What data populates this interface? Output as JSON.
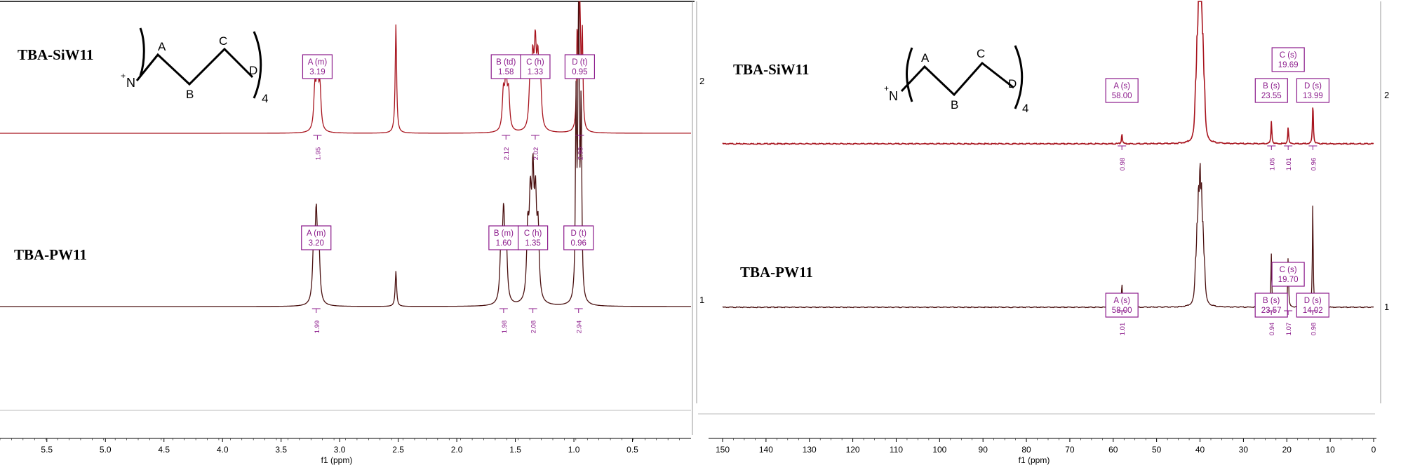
{
  "colors": {
    "trace_top": "#a8141e",
    "trace_bottom": "#4a1010",
    "annotation": "#8b1a8b",
    "axis": "#000000",
    "divider": "#cfcfcf"
  },
  "panels": [
    {
      "id": "h1",
      "axis_label": "f1 (ppm)",
      "right_ticks": [
        "2",
        "1"
      ],
      "xticks": [
        "5.5",
        "5.0",
        "4.5",
        "4.0",
        "3.5",
        "3.0",
        "2.5",
        "2.0",
        "1.5",
        "1.0",
        "0.5"
      ],
      "structure": {
        "cation": "N",
        "charge": "+",
        "labels": [
          "A",
          "B",
          "C",
          "D"
        ],
        "subscript": "4"
      }
    },
    {
      "id": "c13",
      "axis_label": "f1 (ppm)",
      "right_ticks": [
        "2",
        "1"
      ],
      "xticks": [
        "150",
        "140",
        "130",
        "120",
        "110",
        "100",
        "90",
        "80",
        "70",
        "60",
        "50",
        "40",
        "30",
        "20",
        "10",
        "0"
      ],
      "structure": {
        "cation": "N",
        "charge": "+",
        "labels": [
          "A",
          "B",
          "C",
          "D"
        ],
        "subscript": "4"
      }
    }
  ],
  "chart_data": [
    {
      "type": "line",
      "title": "",
      "xlabel": "f1 (ppm)",
      "xlim": [
        5.9,
        0.0
      ],
      "x_reversed": true,
      "series": [
        {
          "name": "TBA-SiW11",
          "peaks": [
            {
              "ppm": 3.19,
              "height": 0.55,
              "mult": "m"
            },
            {
              "ppm": 2.52,
              "height": 1.0,
              "mult": "s"
            },
            {
              "ppm": 1.58,
              "height": 0.5,
              "mult": "td"
            },
            {
              "ppm": 1.33,
              "height": 0.7,
              "mult": "h"
            },
            {
              "ppm": 0.95,
              "height": 1.6,
              "mult": "t"
            }
          ],
          "annotations": [
            {
              "label": "A (m)",
              "value": "3.19",
              "ppm": 3.19
            },
            {
              "label": "B (td)",
              "value": "1.58",
              "ppm": 1.58
            },
            {
              "label": "C (h)",
              "value": "1.33",
              "ppm": 1.33
            },
            {
              "label": "D (t)",
              "value": "0.95",
              "ppm": 0.95
            }
          ],
          "integrals": [
            {
              "value": "1.95",
              "ppm": 3.19
            },
            {
              "value": "2.12",
              "ppm": 1.58
            },
            {
              "value": "2.02",
              "ppm": 1.33
            },
            {
              "value": "2.90",
              "ppm": 0.95
            }
          ]
        },
        {
          "name": "TBA-PW11",
          "peaks": [
            {
              "ppm": 3.2,
              "height": 0.28,
              "mult": "m"
            },
            {
              "ppm": 2.52,
              "height": 0.12,
              "mult": "s"
            },
            {
              "ppm": 1.6,
              "height": 0.28,
              "mult": "m"
            },
            {
              "ppm": 1.35,
              "height": 0.38,
              "mult": "h"
            },
            {
              "ppm": 0.96,
              "height": 1.2,
              "mult": "t"
            }
          ],
          "annotations": [
            {
              "label": "A (m)",
              "value": "3.20",
              "ppm": 3.2
            },
            {
              "label": "B (m)",
              "value": "1.60",
              "ppm": 1.6
            },
            {
              "label": "C (h)",
              "value": "1.35",
              "ppm": 1.35
            },
            {
              "label": "D (t)",
              "value": "0.96",
              "ppm": 0.96
            }
          ],
          "integrals": [
            {
              "value": "1.99",
              "ppm": 3.2
            },
            {
              "value": "1.98",
              "ppm": 1.6
            },
            {
              "value": "2.08",
              "ppm": 1.35
            },
            {
              "value": "2.94",
              "ppm": 0.96
            }
          ]
        }
      ]
    },
    {
      "type": "line",
      "title": "",
      "xlabel": "f1 (ppm)",
      "xlim": [
        150,
        0
      ],
      "x_reversed": true,
      "series": [
        {
          "name": "TBA-SiW11",
          "peaks": [
            {
              "ppm": 58.0,
              "height": 0.08,
              "mult": "s"
            },
            {
              "ppm": 40.0,
              "height": 1.0,
              "mult": "solvent"
            },
            {
              "ppm": 23.55,
              "height": 0.18,
              "mult": "s"
            },
            {
              "ppm": 19.69,
              "height": 0.13,
              "mult": "s"
            },
            {
              "ppm": 13.99,
              "height": 0.32,
              "mult": "s"
            }
          ],
          "annotations": [
            {
              "label": "A (s)",
              "value": "58.00",
              "ppm": 58.0
            },
            {
              "label": "B (s)",
              "value": "23.55",
              "ppm": 23.55
            },
            {
              "label": "C (s)",
              "value": "19.69",
              "ppm": 19.69
            },
            {
              "label": "D (s)",
              "value": "13.99",
              "ppm": 13.99
            }
          ],
          "integrals": [
            {
              "value": "0.98",
              "ppm": 58.0
            },
            {
              "value": "1.05",
              "ppm": 23.55
            },
            {
              "value": "1.01",
              "ppm": 19.69
            },
            {
              "value": "0.96",
              "ppm": 13.99
            }
          ]
        },
        {
          "name": "TBA-PW11",
          "peaks": [
            {
              "ppm": 58.0,
              "height": 0.24,
              "mult": "s"
            },
            {
              "ppm": 40.0,
              "height": 1.0,
              "mult": "solvent"
            },
            {
              "ppm": 23.57,
              "height": 0.52,
              "mult": "s"
            },
            {
              "ppm": 19.7,
              "height": 0.48,
              "mult": "s"
            },
            {
              "ppm": 14.02,
              "height": 1.0,
              "mult": "s"
            }
          ],
          "annotations": [
            {
              "label": "A (s)",
              "value": "58.00",
              "ppm": 58.0
            },
            {
              "label": "B (s)",
              "value": "23.57",
              "ppm": 23.57
            },
            {
              "label": "C (s)",
              "value": "19.70",
              "ppm": 19.7
            },
            {
              "label": "D (s)",
              "value": "14.02",
              "ppm": 14.02
            }
          ],
          "integrals": [
            {
              "value": "1.01",
              "ppm": 58.0
            },
            {
              "value": "0.94",
              "ppm": 23.57
            },
            {
              "value": "1.07",
              "ppm": 19.7
            },
            {
              "value": "0.98",
              "ppm": 14.02
            }
          ]
        }
      ]
    }
  ]
}
